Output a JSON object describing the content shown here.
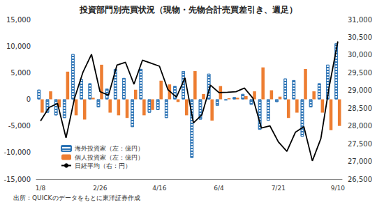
{
  "chart_data": {
    "type": "bar",
    "title": "投資部門別売買状況（現物・先物合計売買差引き、週足）",
    "source": "出所：QUICKのデータをもとに東洋証券作成",
    "categories": [
      "1/8",
      null,
      null,
      null,
      null,
      null,
      null,
      "2/26",
      null,
      null,
      null,
      null,
      null,
      null,
      "4/16",
      null,
      null,
      null,
      null,
      null,
      null,
      "6/4",
      null,
      null,
      null,
      null,
      null,
      null,
      "7/21",
      null,
      null,
      null,
      null,
      null,
      null,
      "9/10"
    ],
    "series": [
      {
        "name": "海外投資家（左：億円）",
        "type": "bar",
        "color": "#2e75b6",
        "marker": "striped",
        "values": [
          1800,
          -2500,
          -3000,
          -3500,
          8500,
          3800,
          3000,
          -1500,
          2000,
          5700,
          4000,
          -5200,
          5700,
          -2500,
          -2000,
          -3500,
          2500,
          5300,
          -11000,
          -3800,
          4800,
          -1200,
          -200,
          400,
          1000,
          -1000,
          -5700,
          -4000,
          -500,
          3900,
          3600,
          -7000,
          -1500,
          3000,
          6500,
          10500
        ]
      },
      {
        "name": "個人投資家（左：億円）",
        "type": "bar",
        "color": "#ed7d31",
        "values": [
          -2500,
          1500,
          -1500,
          5200,
          -3000,
          -3800,
          300,
          6500,
          -2500,
          -3000,
          -3500,
          1800,
          -3000,
          -2000,
          3500,
          2800,
          -500,
          -3000,
          5300,
          1000,
          -4000,
          2500,
          200,
          300,
          600,
          1500,
          6000,
          1700,
          500,
          -3500,
          -2500,
          5700,
          1500,
          -2500,
          -5800,
          -5000
        ]
      },
      {
        "name": "日経平均（右：円）",
        "type": "line",
        "axis": "y2",
        "color": "#000000",
        "line_style": "solid",
        "values": [
          28139,
          28519,
          28631,
          27663,
          28779,
          29520,
          30018,
          28966,
          28864,
          29717,
          29792,
          29176,
          29854,
          29768,
          29683,
          29020,
          28812,
          29357,
          28084,
          28317,
          29149,
          28941,
          28948,
          28964,
          29066,
          28783,
          27940,
          28003,
          27548,
          27283,
          27820,
          27977,
          27013,
          27641,
          29128,
          30381
        ]
      }
    ],
    "ylim": [
      -15000,
      15000
    ],
    "yticks": [
      {
        "value": -15000,
        "label": "-15,000"
      },
      {
        "value": -10000,
        "label": "-10,000"
      },
      {
        "value": -5000,
        "label": "-5,000"
      },
      0,
      {
        "value": 5000,
        "label": "5,000"
      },
      {
        "value": 10000,
        "label": "10,000"
      },
      {
        "value": 15000,
        "label": "15,000"
      }
    ],
    "y2lim": [
      26500,
      31000
    ],
    "y2ticks": [
      {
        "value": 26500,
        "label": "26,500"
      },
      {
        "value": 27000,
        "label": "27,000"
      },
      {
        "value": 27500,
        "label": "27,500"
      },
      {
        "value": 28000,
        "label": "28,000"
      },
      {
        "value": 28500,
        "label": "28,500"
      },
      {
        "value": 29000,
        "label": "29,000"
      },
      {
        "value": 29500,
        "label": "29,500"
      },
      {
        "value": 30000,
        "label": "30,000"
      },
      {
        "value": 30500,
        "label": "30,500"
      },
      {
        "value": 31000,
        "label": "31,000"
      }
    ],
    "grid": false,
    "legend": "lower left"
  }
}
